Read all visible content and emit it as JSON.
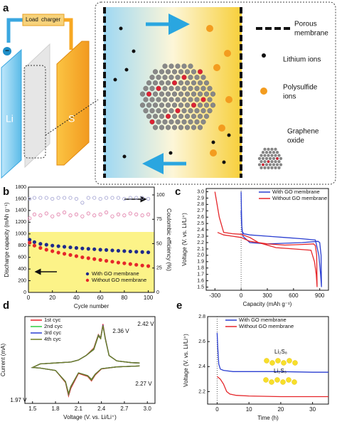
{
  "panel_labels": [
    "a",
    "b",
    "c",
    "d",
    "e"
  ],
  "diagram": {
    "load": "Load",
    "charger": "charger",
    "anode": "Li",
    "cathode": "S",
    "minus": "−",
    "plus": "+",
    "legend": [
      [
        "Porous",
        "membrane"
      ],
      [
        "Lithium ions"
      ],
      [
        "Polysulfide",
        "ions"
      ],
      [
        "Graphene",
        "oxide"
      ]
    ]
  },
  "chart_data": [
    {
      "type": "scatter",
      "xlabel": "Cycle number",
      "ylabel": "Discharge capacity (mAh g⁻¹)",
      "y2label": "Coulombic efficiency (%)",
      "x": [
        1,
        5,
        10,
        15,
        20,
        25,
        30,
        35,
        40,
        45,
        50,
        55,
        60,
        65,
        70,
        75,
        80,
        85,
        90,
        95,
        100
      ],
      "xlim": [
        0,
        105
      ],
      "xticks": [
        0,
        20,
        40,
        60,
        80,
        100
      ],
      "ylim": [
        0,
        1800
      ],
      "yticks": [
        0,
        200,
        400,
        600,
        800,
        1000,
        1200,
        1400,
        1600,
        1800
      ],
      "y2lim": [
        0,
        108
      ],
      "y2ticks": [
        0,
        25,
        50,
        75,
        100
      ],
      "legend": "lower right",
      "series": [
        {
          "name": "With GO membrane",
          "color": "#1f2a8c",
          "values": [
            900,
            860,
            830,
            815,
            800,
            790,
            780,
            770,
            760,
            752,
            745,
            738,
            730,
            725,
            718,
            712,
            706,
            700,
            695,
            690,
            685
          ]
        },
        {
          "name": "Without GO membrane",
          "color": "#e5262a",
          "values": [
            850,
            800,
            760,
            730,
            705,
            680,
            660,
            640,
            620,
            600,
            585,
            570,
            555,
            540,
            525,
            510,
            498,
            485,
            472,
            460,
            450
          ]
        },
        {
          "color": "#9c9ccf",
          "axis": "y2",
          "hollow": true,
          "values": [
            96,
            97,
            97,
            97,
            96,
            97,
            97,
            97,
            96,
            92,
            97,
            97,
            96,
            97,
            97,
            97,
            96,
            97,
            97,
            97,
            96
          ]
        },
        {
          "color": "#e07aa6",
          "axis": "y2",
          "hollow": true,
          "values": [
            76,
            80,
            79,
            81,
            78,
            80,
            82,
            79,
            80,
            78,
            81,
            79,
            80,
            82,
            78,
            80,
            79,
            81,
            80,
            79,
            80
          ]
        }
      ]
    },
    {
      "type": "line",
      "xlabel": "Capacity (mAh g⁻¹)",
      "ylabel": "Voltage (V. vs. Li/Li⁺)",
      "xlim": [
        -400,
        1000
      ],
      "xticks": [
        -300,
        0,
        300,
        600,
        900
      ],
      "ylim": [
        1.45,
        3.05
      ],
      "yticks": [
        1.5,
        1.6,
        1.7,
        1.8,
        1.9,
        {
          "value": 2,
          "label": "2.0"
        },
        2.1,
        2.2,
        2.3,
        2.4,
        2.5,
        2.6,
        2.7,
        2.8,
        2.9,
        {
          "value": 3,
          "label": "3.0"
        }
      ],
      "legend": "upper right",
      "series": [
        {
          "name": "With GO membrane",
          "color": "#2b3fd1",
          "x": [
            0,
            5,
            10,
            30,
            100,
            300,
            500,
            700,
            850,
            890,
            910,
            920,
            915,
            900,
            880,
            700,
            500,
            300,
            100,
            20,
            5,
            0
          ],
          "values": [
            3.0,
            2.6,
            2.38,
            2.34,
            2.32,
            2.3,
            2.28,
            2.26,
            2.24,
            2.0,
            1.7,
            1.5,
            2.0,
            2.2,
            2.22,
            2.2,
            2.19,
            2.18,
            2.2,
            2.3,
            2.5,
            2.7
          ]
        },
        {
          "name": "Without GO membrane",
          "color": "#e5262a",
          "x": [
            -300,
            -250,
            -200,
            -100,
            0,
            100,
            200,
            400,
            600,
            800,
            840,
            860,
            870,
            865,
            850,
            830,
            700,
            500,
            300,
            100,
            0,
            -100,
            -200,
            -270
          ],
          "values": [
            3.0,
            2.6,
            2.36,
            2.34,
            2.33,
            2.28,
            2.2,
            2.12,
            2.1,
            2.08,
            1.9,
            1.7,
            1.5,
            2.0,
            2.15,
            2.18,
            2.17,
            2.16,
            2.18,
            2.22,
            2.28,
            2.3,
            2.32,
            2.36
          ]
        }
      ]
    },
    {
      "type": "line",
      "xlabel": "Voltage (V. vs. Li/Li⁺)",
      "ylabel": "Current (mA)",
      "x": [
        2.9,
        2.6,
        2.4,
        2.32,
        2.27,
        2.22,
        2.1,
        2.0,
        1.97,
        1.93,
        1.8,
        1.6,
        1.5,
        1.6,
        1.8,
        2.0,
        2.1,
        2.2,
        2.3,
        2.36,
        2.39,
        2.42,
        2.45,
        2.5,
        2.6,
        2.8,
        2.9
      ],
      "xlim": [
        1.4,
        3.1
      ],
      "xticks": [
        1.5,
        1.8,
        2.1,
        2.4,
        2.7,
        {
          "value": 3,
          "label": "3.0"
        }
      ],
      "ylim": [
        -1.3,
        1.6
      ],
      "legend": "upper left",
      "annotations": [
        "2.42 V",
        "2.36 V",
        "2.27 V",
        "1.97 V"
      ],
      "series": [
        {
          "name": "1st cyc",
          "color": "#e8232a",
          "values": [
            -0.05,
            -0.08,
            -0.15,
            -0.35,
            -0.55,
            -0.4,
            -0.3,
            -0.8,
            -1.05,
            -0.6,
            -0.2,
            -0.12,
            -0.1,
            0.02,
            0.05,
            0.08,
            0.15,
            0.3,
            0.55,
            1.0,
            0.9,
            1.35,
            0.9,
            0.3,
            0.12,
            0.06,
            0.05
          ]
        },
        {
          "name": "2nd cyc",
          "color": "#2ecc40",
          "values": [
            -0.05,
            -0.08,
            -0.14,
            -0.33,
            -0.52,
            -0.38,
            -0.28,
            -0.75,
            -1.0,
            -0.58,
            -0.2,
            -0.12,
            -0.1,
            0.02,
            0.05,
            0.08,
            0.15,
            0.3,
            0.52,
            0.98,
            0.88,
            1.3,
            0.88,
            0.3,
            0.12,
            0.06,
            0.05
          ]
        },
        {
          "name": "3rd cyc",
          "color": "#2b3fd1",
          "values": [
            -0.05,
            -0.08,
            -0.14,
            -0.32,
            -0.5,
            -0.37,
            -0.28,
            -0.74,
            -0.98,
            -0.57,
            -0.2,
            -0.12,
            -0.1,
            0.02,
            0.05,
            0.08,
            0.15,
            0.3,
            0.5,
            0.96,
            0.87,
            1.32,
            0.87,
            0.3,
            0.12,
            0.06,
            0.05
          ]
        },
        {
          "name": "4th cyc",
          "color": "#6f7d22",
          "values": [
            -0.05,
            -0.08,
            -0.14,
            -0.32,
            -0.5,
            -0.37,
            -0.28,
            -0.73,
            -0.97,
            -0.57,
            -0.2,
            -0.12,
            -0.1,
            0.02,
            0.05,
            0.08,
            0.15,
            0.3,
            0.5,
            0.95,
            0.86,
            1.3,
            0.86,
            0.3,
            0.12,
            0.06,
            0.05
          ]
        }
      ]
    },
    {
      "type": "line",
      "xlabel": "Time (h)",
      "ylabel": "Voltage (V. vs. Li/Li⁺)",
      "xlim": [
        -3,
        35
      ],
      "xticks": [
        0,
        10,
        20,
        30
      ],
      "ylim": [
        2.1,
        2.8
      ],
      "yticks": [
        2.2,
        2.4,
        2.6,
        2.8
      ],
      "legend": "upper center",
      "annotations": [
        "Li₂S₈",
        "Li₂S₆"
      ],
      "series": [
        {
          "name": "With GO membrane",
          "color": "#2b3fd1",
          "x": [
            0,
            0.2,
            0.5,
            1,
            2,
            5,
            10,
            20,
            30,
            35
          ],
          "values": [
            2.67,
            2.55,
            2.42,
            2.38,
            2.37,
            2.36,
            2.36,
            2.36,
            2.355,
            2.355
          ]
        },
        {
          "name": "Without GO membrane",
          "color": "#e5262a",
          "x": [
            0,
            1,
            2,
            3,
            4,
            6,
            10,
            20,
            30,
            35
          ],
          "values": [
            2.32,
            2.3,
            2.26,
            2.2,
            2.18,
            2.17,
            2.165,
            2.16,
            2.16,
            2.16
          ]
        }
      ]
    }
  ]
}
